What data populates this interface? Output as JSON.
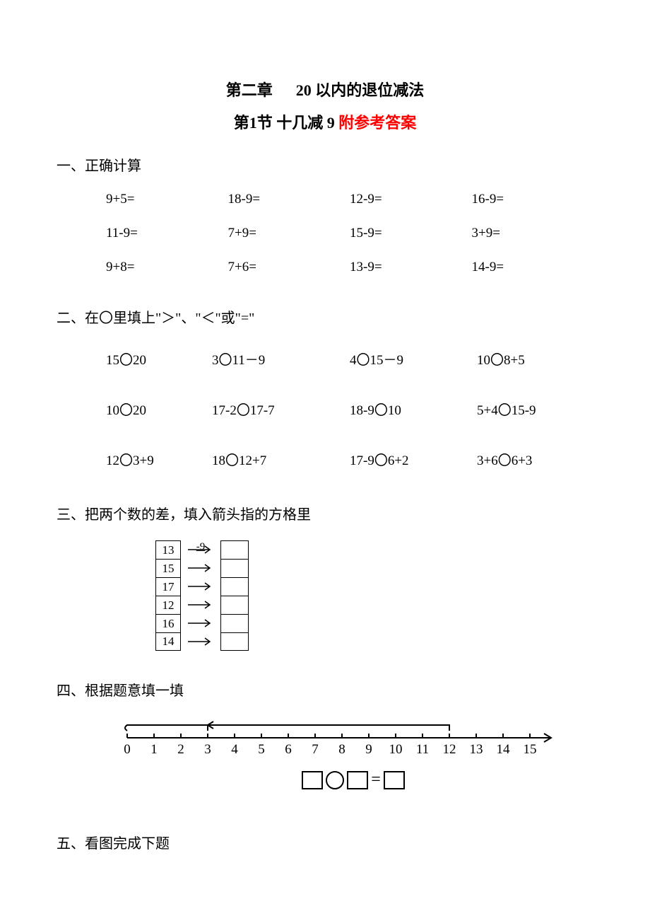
{
  "title": {
    "chapter": "第二章",
    "chapter_label": "20 以内的退位减法",
    "section_prefix": "第1节  十几减 9 ",
    "section_suffix": "附参考答案"
  },
  "section1": {
    "heading": "一、正确计算",
    "rows": [
      [
        "9+5=",
        "18-9=",
        "12-9=",
        "16-9="
      ],
      [
        "11-9=",
        "7+9=",
        "15-9=",
        "3+9="
      ],
      [
        "9+8=",
        "7+6=",
        "13-9=",
        "14-9="
      ]
    ]
  },
  "section2": {
    "heading": "二、在〇里填上\"＞\"、\"＜\"或\"=\"",
    "rows": [
      [
        "15〇20",
        "3〇11－9",
        "4〇15－9",
        "10〇8+5"
      ],
      [
        "10〇20",
        "17-2〇17-7",
        "18-9〇10",
        "5+4〇15-9"
      ],
      [
        "12〇3+9",
        "18〇12+7",
        "17-9〇6+2",
        "3+6〇6+3"
      ]
    ]
  },
  "section3": {
    "heading": "三、把两个数的差，填入箭头指的方格里",
    "op_label": "-9",
    "inputs": [
      "13",
      "15",
      "17",
      "12",
      "16",
      "14"
    ]
  },
  "section4": {
    "heading": "四、根据题意填一填",
    "numberline": {
      "start": 0,
      "end": 15,
      "bracket_from": 3,
      "bracket_to": 12,
      "pointer": 3
    }
  },
  "section5": {
    "heading": "五、看图完成下题"
  },
  "colors": {
    "text": "#000000",
    "accent": "#ff0000",
    "background": "#ffffff"
  }
}
